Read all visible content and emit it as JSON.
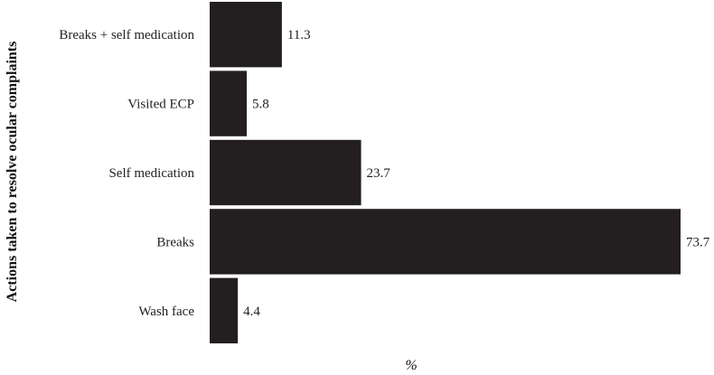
{
  "chart_data": {
    "type": "bar",
    "orientation": "horizontal",
    "categories": [
      "Breaks + self medication",
      "Visited ECP",
      "Self medication",
      "Breaks",
      "Wash face"
    ],
    "values": [
      11.3,
      5.8,
      23.7,
      73.7,
      4.4
    ],
    "value_labels": [
      "11.3",
      "5.8",
      "23.7",
      "73.7",
      "4.4"
    ],
    "title": "",
    "xlabel": "%",
    "ylabel": "Actions taken to resolve ocular complaints",
    "xlim": [
      0,
      73.7
    ],
    "grid": false,
    "bar_color": "#231f20"
  }
}
